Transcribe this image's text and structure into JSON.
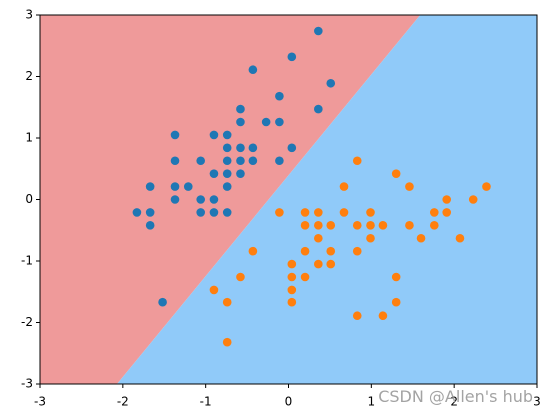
{
  "chart_data": {
    "type": "scatter",
    "xlim": [
      -3,
      3
    ],
    "ylim": [
      -3,
      3
    ],
    "xticks": [
      -3,
      -2,
      -1,
      0,
      1,
      2,
      3
    ],
    "yticks": [
      -3,
      -2,
      -1,
      0,
      1,
      2,
      3
    ],
    "regions": {
      "colors": [
        "#ef9a9a",
        "#90caf9"
      ]
    },
    "boundary": {
      "x": [
        -2.07,
        1.59
      ],
      "y": [
        -3,
        3
      ]
    },
    "series": [
      {
        "color": "#1f77b4",
        "x": [
          0.36,
          0.04,
          -0.43,
          0.51,
          -0.11,
          -0.58,
          0.36,
          -1.37,
          -0.9,
          -0.74,
          -0.58,
          -0.27,
          -0.11,
          -0.74,
          -0.58,
          -0.43,
          0.04,
          -1.37,
          -1.06,
          -0.74,
          -0.58,
          -0.43,
          -0.11,
          -0.9,
          -0.74,
          -0.58,
          -1.67,
          -1.37,
          -1.21,
          -0.74,
          -1.37,
          -1.06,
          -0.9,
          -1.83,
          -1.67,
          -1.06,
          -0.9,
          -0.74,
          -1.67,
          -1.52
        ],
        "y": [
          2.74,
          2.32,
          2.11,
          1.89,
          1.68,
          1.47,
          1.47,
          1.05,
          1.05,
          1.05,
          1.26,
          1.26,
          1.26,
          0.84,
          0.84,
          0.84,
          0.84,
          0.63,
          0.63,
          0.63,
          0.63,
          0.63,
          0.63,
          0.42,
          0.42,
          0.42,
          0.21,
          0.21,
          0.21,
          0.21,
          0,
          0,
          0,
          -0.21,
          -0.21,
          -0.21,
          -0.21,
          -0.21,
          -0.42,
          -1.67
        ]
      },
      {
        "color": "#ff7f0e",
        "x": [
          0.83,
          1.3,
          0.67,
          1.46,
          2.39,
          1.91,
          2.23,
          -0.11,
          0.2,
          0.36,
          0.67,
          0.99,
          1.76,
          1.91,
          0.2,
          0.36,
          0.51,
          0.83,
          0.99,
          1.14,
          1.46,
          1.76,
          0.36,
          0.99,
          1.6,
          2.07,
          -0.43,
          0.2,
          0.51,
          0.83,
          0.04,
          0.36,
          0.51,
          -0.58,
          0.04,
          0.2,
          1.3,
          -0.9,
          0.04,
          -0.74,
          0.04,
          1.3,
          0.83,
          1.14,
          -0.74
        ],
        "y": [
          0.63,
          0.42,
          0.21,
          0.21,
          0.21,
          0,
          0,
          -0.21,
          -0.21,
          -0.21,
          -0.21,
          -0.21,
          -0.21,
          -0.21,
          -0.42,
          -0.42,
          -0.42,
          -0.42,
          -0.42,
          -0.42,
          -0.42,
          -0.42,
          -0.63,
          -0.63,
          -0.63,
          -0.63,
          -0.84,
          -0.84,
          -0.84,
          -0.84,
          -1.05,
          -1.05,
          -1.05,
          -1.26,
          -1.26,
          -1.26,
          -1.26,
          -1.47,
          -1.47,
          -1.67,
          -1.67,
          -1.67,
          -1.89,
          -1.89,
          -2.32
        ]
      }
    ],
    "watermark": "CSDN @Allen's hub"
  }
}
